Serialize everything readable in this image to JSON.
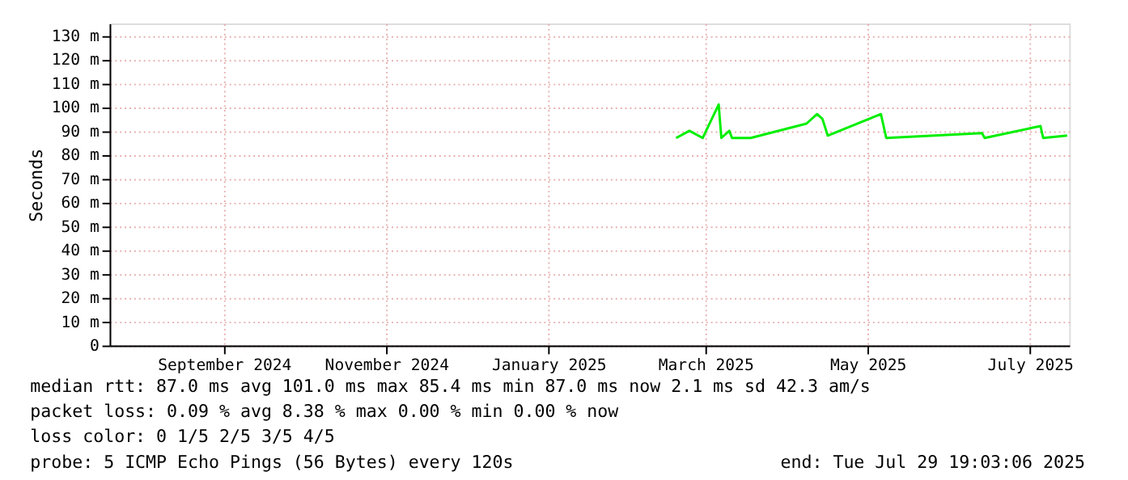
{
  "chart_data": {
    "type": "line",
    "ylabel": "Seconds",
    "x": [
      "2025-03-04",
      "2025-03-09",
      "2025-03-14",
      "2025-03-20",
      "2025-03-21",
      "2025-03-24",
      "2025-03-25",
      "2025-04-01",
      "2025-04-22",
      "2025-04-26",
      "2025-04-28",
      "2025-04-30",
      "2025-05-20",
      "2025-05-22",
      "2025-06-27",
      "2025-06-28",
      "2025-07-19",
      "2025-07-20",
      "2025-07-29"
    ],
    "series": [
      {
        "color": "#00ee00",
        "values": [
          87,
          90,
          87,
          101,
          87,
          90,
          87,
          87,
          93,
          97,
          95,
          88,
          97,
          87,
          89,
          87,
          92,
          87,
          88
        ]
      }
    ],
    "xlim": [
      "2024-08-03",
      "2025-07-29T19:03"
    ],
    "xticks": [
      {
        "value": "2024-09-15",
        "label": "September 2024"
      },
      {
        "value": "2024-11-15",
        "label": "November 2024"
      },
      {
        "value": "2025-01-15",
        "label": "January 2025"
      },
      {
        "value": "2025-03-15",
        "label": "March 2025"
      },
      {
        "value": "2025-05-15",
        "label": "May 2025"
      },
      {
        "value": "2025-07-15",
        "label": "July 2025"
      }
    ],
    "ylim": [
      0,
      135
    ],
    "yticks": [
      0,
      {
        "value": 10,
        "label": "10 m"
      },
      {
        "value": 20,
        "label": "20 m"
      },
      {
        "value": 30,
        "label": "30 m"
      },
      {
        "value": 40,
        "label": "40 m"
      },
      {
        "value": 50,
        "label": "50 m"
      },
      {
        "value": 60,
        "label": "60 m"
      },
      {
        "value": 70,
        "label": "70 m"
      },
      {
        "value": 80,
        "label": "80 m"
      },
      {
        "value": 90,
        "label": "90 m"
      },
      {
        "value": 100,
        "label": "100 m"
      },
      {
        "value": 110,
        "label": "110 m"
      },
      {
        "value": 120,
        "label": "120 m"
      },
      {
        "value": 130,
        "label": "130 m"
      }
    ],
    "grid": true,
    "line_style": "solid",
    "marker": "none",
    "annotations": [
      "median rtt:  87.0 ms avg  101.0 ms max  85.4 ms min  87.0 ms now  2.1 ms sd  42.3   am/s",
      "packet loss: 0.09 % avg  8.38 % max  0.00 % min  0.00 % now",
      "loss color:  0  1/5  2/5  3/5  4/5",
      "probe:       5 ICMP Echo Pings (56 Bytes) every 120s",
      "end: Tue Jul 29 19:03:06 2025"
    ]
  }
}
